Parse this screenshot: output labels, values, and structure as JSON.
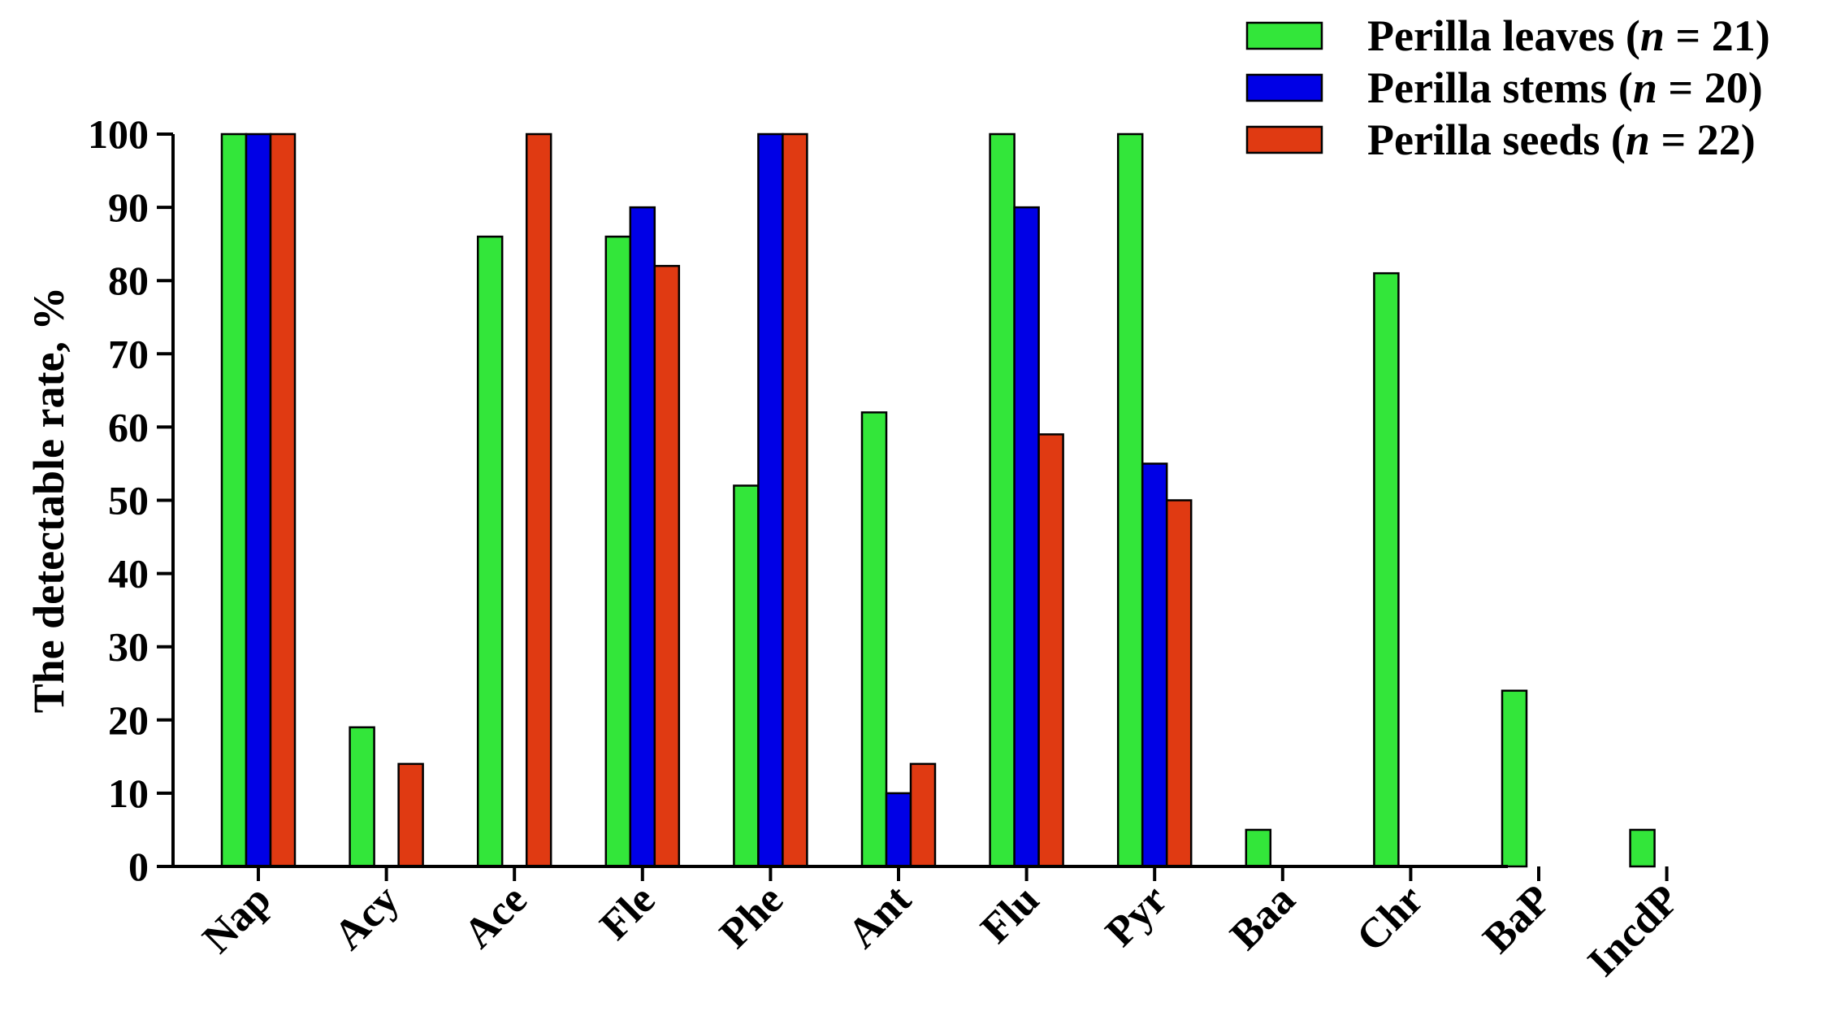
{
  "chart_data": {
    "type": "bar",
    "title": "",
    "xlabel": "",
    "ylabel": "The detectable rate, %",
    "ylim": [
      0,
      100
    ],
    "yticks": [
      0,
      10,
      20,
      30,
      40,
      50,
      60,
      70,
      80,
      90,
      100
    ],
    "grid": false,
    "legend_position": "top-right",
    "categories": [
      "Nap",
      "Acy",
      "Ace",
      "Fle",
      "Phe",
      "Ant",
      "Flu",
      "Pyr",
      "Baa",
      "Chr",
      "BaP",
      "IncdP"
    ],
    "series": [
      {
        "name_prefix": "Perilla leaves (",
        "name_n": "n",
        "name_suffix": " = 21)",
        "color": "#33e63a",
        "values": [
          100,
          19,
          86,
          86,
          52,
          62,
          100,
          100,
          5,
          81,
          24,
          5
        ]
      },
      {
        "name_prefix": "Perilla stems (",
        "name_n": "n",
        "name_suffix": " = 20)",
        "color": "#0000e6",
        "values": [
          100,
          0,
          0,
          90,
          100,
          10,
          90,
          55,
          0,
          0,
          0,
          0
        ]
      },
      {
        "name_prefix": "Perilla seeds (",
        "name_n": "n",
        "name_suffix": " = 22)",
        "color": "#e03a12",
        "values": [
          100,
          14,
          100,
          82,
          100,
          14,
          59,
          50,
          0,
          0,
          0,
          0
        ]
      }
    ]
  }
}
